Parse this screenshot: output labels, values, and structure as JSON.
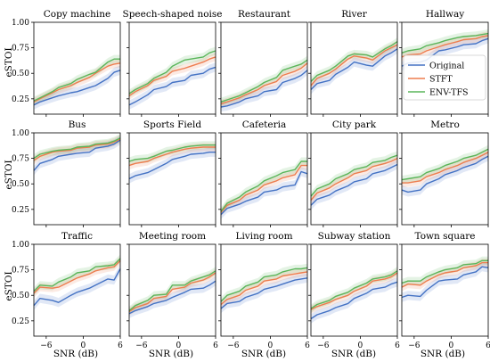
{
  "chart_data": {
    "type": "line",
    "layout": "3x5 small multiples, shared axes",
    "xlabel": "SNR (dB)",
    "ylabel": "eSTOI",
    "x": [
      -8,
      -7,
      -5,
      -4,
      -2,
      -1,
      1,
      2,
      4,
      5,
      6
    ],
    "xticks": [
      -6,
      0,
      6
    ],
    "yticks": [
      0.25,
      0.5,
      0.75,
      1.0
    ],
    "xlim": [
      -8,
      6
    ],
    "ylim": [
      0.1,
      1.0
    ],
    "legend": {
      "placement": "inside Hallway panel, bottom-right",
      "entries": [
        "Original",
        "STFT",
        "ENV-TFS"
      ]
    },
    "series_colors": {
      "Original": "#4472c4",
      "STFT": "#ed7d4f",
      "ENV-TFS": "#5ab55a"
    },
    "panels": [
      {
        "title": "Copy machine",
        "series": [
          {
            "name": "Original",
            "values": [
              0.19,
              0.22,
              0.26,
              0.28,
              0.31,
              0.32,
              0.36,
              0.38,
              0.45,
              0.51,
              0.53
            ]
          },
          {
            "name": "STFT",
            "values": [
              0.22,
              0.25,
              0.31,
              0.34,
              0.38,
              0.41,
              0.46,
              0.5,
              0.57,
              0.59,
              0.6
            ]
          },
          {
            "name": "ENV-TFS",
            "values": [
              0.23,
              0.26,
              0.32,
              0.36,
              0.4,
              0.44,
              0.49,
              0.51,
              0.61,
              0.64,
              0.64
            ]
          }
        ]
      },
      {
        "title": "Speech-shaped noise",
        "series": [
          {
            "name": "Original",
            "values": [
              0.19,
              0.22,
              0.29,
              0.34,
              0.37,
              0.41,
              0.43,
              0.48,
              0.5,
              0.54,
              0.56
            ]
          },
          {
            "name": "STFT",
            "values": [
              0.28,
              0.32,
              0.38,
              0.43,
              0.47,
              0.52,
              0.55,
              0.57,
              0.61,
              0.64,
              0.66
            ]
          },
          {
            "name": "ENV-TFS",
            "values": [
              0.3,
              0.34,
              0.4,
              0.45,
              0.51,
              0.57,
              0.63,
              0.64,
              0.66,
              0.7,
              0.72
            ]
          }
        ]
      },
      {
        "title": "Restaurant",
        "series": [
          {
            "name": "Original",
            "values": [
              0.17,
              0.18,
              0.22,
              0.25,
              0.28,
              0.32,
              0.34,
              0.41,
              0.45,
              0.48,
              0.53
            ]
          },
          {
            "name": "STFT",
            "values": [
              0.2,
              0.22,
              0.26,
              0.29,
              0.34,
              0.38,
              0.42,
              0.48,
              0.52,
              0.55,
              0.6
            ]
          },
          {
            "name": "ENV-TFS",
            "values": [
              0.22,
              0.24,
              0.28,
              0.31,
              0.37,
              0.41,
              0.46,
              0.53,
              0.57,
              0.59,
              0.63
            ]
          }
        ]
      },
      {
        "title": "River",
        "series": [
          {
            "name": "Original",
            "values": [
              0.34,
              0.4,
              0.43,
              0.49,
              0.56,
              0.61,
              0.58,
              0.57,
              0.67,
              0.7,
              0.74
            ]
          },
          {
            "name": "STFT",
            "values": [
              0.38,
              0.45,
              0.5,
              0.54,
              0.64,
              0.67,
              0.65,
              0.63,
              0.72,
              0.75,
              0.78
            ]
          },
          {
            "name": "ENV-TFS",
            "values": [
              0.42,
              0.48,
              0.53,
              0.57,
              0.67,
              0.69,
              0.68,
              0.66,
              0.74,
              0.77,
              0.81
            ]
          }
        ]
      },
      {
        "title": "Hallway",
        "series": [
          {
            "name": "Original",
            "values": [
              0.57,
              0.6,
              0.61,
              0.63,
              0.72,
              0.73,
              0.76,
              0.78,
              0.79,
              0.82,
              0.84
            ]
          },
          {
            "name": "STFT",
            "values": [
              0.66,
              0.68,
              0.69,
              0.72,
              0.76,
              0.78,
              0.81,
              0.83,
              0.84,
              0.86,
              0.87
            ]
          },
          {
            "name": "ENV-TFS",
            "values": [
              0.7,
              0.72,
              0.74,
              0.77,
              0.8,
              0.82,
              0.85,
              0.86,
              0.87,
              0.88,
              0.89
            ]
          }
        ]
      },
      {
        "title": "Bus",
        "series": [
          {
            "name": "Original",
            "values": [
              0.63,
              0.7,
              0.74,
              0.77,
              0.79,
              0.8,
              0.81,
              0.85,
              0.87,
              0.89,
              0.93
            ]
          },
          {
            "name": "STFT",
            "values": [
              0.73,
              0.77,
              0.81,
              0.82,
              0.83,
              0.85,
              0.86,
              0.88,
              0.89,
              0.91,
              0.94
            ]
          },
          {
            "name": "ENV-TFS",
            "values": [
              0.75,
              0.79,
              0.82,
              0.83,
              0.84,
              0.86,
              0.87,
              0.89,
              0.9,
              0.92,
              0.95
            ]
          }
        ]
      },
      {
        "title": "Sports Field",
        "series": [
          {
            "name": "Original",
            "values": [
              0.55,
              0.58,
              0.61,
              0.64,
              0.7,
              0.74,
              0.77,
              0.79,
              0.8,
              0.81,
              0.81
            ]
          },
          {
            "name": "STFT",
            "values": [
              0.68,
              0.7,
              0.72,
              0.75,
              0.79,
              0.81,
              0.84,
              0.85,
              0.86,
              0.86,
              0.86
            ]
          },
          {
            "name": "ENV-TFS",
            "values": [
              0.72,
              0.74,
              0.75,
              0.77,
              0.82,
              0.83,
              0.86,
              0.87,
              0.88,
              0.88,
              0.88
            ]
          }
        ]
      },
      {
        "title": "Cafeteria",
        "series": [
          {
            "name": "Original",
            "values": [
              0.2,
              0.26,
              0.3,
              0.33,
              0.37,
              0.42,
              0.44,
              0.47,
              0.49,
              0.62,
              0.6
            ]
          },
          {
            "name": "STFT",
            "values": [
              0.22,
              0.29,
              0.34,
              0.39,
              0.44,
              0.49,
              0.53,
              0.56,
              0.59,
              0.68,
              0.68
            ]
          },
          {
            "name": "ENV-TFS",
            "values": [
              0.23,
              0.31,
              0.37,
              0.42,
              0.48,
              0.53,
              0.58,
              0.61,
              0.64,
              0.72,
              0.72
            ]
          }
        ]
      },
      {
        "title": "City park",
        "series": [
          {
            "name": "Original",
            "values": [
              0.29,
              0.35,
              0.39,
              0.43,
              0.48,
              0.52,
              0.55,
              0.6,
              0.63,
              0.66,
              0.69
            ]
          },
          {
            "name": "STFT",
            "values": [
              0.34,
              0.41,
              0.46,
              0.5,
              0.56,
              0.6,
              0.63,
              0.67,
              0.7,
              0.72,
              0.75
            ]
          },
          {
            "name": "ENV-TFS",
            "values": [
              0.38,
              0.45,
              0.5,
              0.55,
              0.6,
              0.64,
              0.67,
              0.71,
              0.73,
              0.76,
              0.78
            ]
          }
        ]
      },
      {
        "title": "Metro",
        "series": [
          {
            "name": "Original",
            "values": [
              0.44,
              0.42,
              0.44,
              0.5,
              0.55,
              0.59,
              0.63,
              0.66,
              0.7,
              0.74,
              0.77
            ]
          },
          {
            "name": "STFT",
            "values": [
              0.51,
              0.51,
              0.53,
              0.57,
              0.61,
              0.64,
              0.68,
              0.71,
              0.75,
              0.78,
              0.81
            ]
          },
          {
            "name": "ENV-TFS",
            "values": [
              0.54,
              0.55,
              0.57,
              0.61,
              0.65,
              0.68,
              0.72,
              0.75,
              0.78,
              0.81,
              0.84
            ]
          }
        ]
      },
      {
        "title": "Traffic",
        "series": [
          {
            "name": "Original",
            "values": [
              0.4,
              0.47,
              0.45,
              0.43,
              0.5,
              0.53,
              0.57,
              0.6,
              0.66,
              0.65,
              0.76
            ]
          },
          {
            "name": "STFT",
            "values": [
              0.52,
              0.58,
              0.57,
              0.58,
              0.64,
              0.67,
              0.71,
              0.74,
              0.77,
              0.78,
              0.84
            ]
          },
          {
            "name": "ENV-TFS",
            "values": [
              0.54,
              0.6,
              0.59,
              0.63,
              0.68,
              0.72,
              0.74,
              0.78,
              0.79,
              0.8,
              0.86
            ]
          }
        ]
      },
      {
        "title": "Meeting room",
        "series": [
          {
            "name": "Original",
            "values": [
              0.32,
              0.35,
              0.39,
              0.42,
              0.45,
              0.48,
              0.53,
              0.56,
              0.57,
              0.6,
              0.64
            ]
          },
          {
            "name": "STFT",
            "values": [
              0.34,
              0.38,
              0.42,
              0.47,
              0.49,
              0.56,
              0.58,
              0.62,
              0.65,
              0.68,
              0.72
            ]
          },
          {
            "name": "ENV-TFS",
            "values": [
              0.35,
              0.4,
              0.45,
              0.5,
              0.51,
              0.6,
              0.6,
              0.64,
              0.68,
              0.7,
              0.74
            ]
          }
        ]
      },
      {
        "title": "Living room",
        "series": [
          {
            "name": "Original",
            "values": [
              0.37,
              0.42,
              0.44,
              0.48,
              0.52,
              0.56,
              0.59,
              0.61,
              0.65,
              0.66,
              0.67
            ]
          },
          {
            "name": "STFT",
            "values": [
              0.41,
              0.46,
              0.5,
              0.55,
              0.59,
              0.64,
              0.66,
              0.69,
              0.71,
              0.72,
              0.73
            ]
          },
          {
            "name": "ENV-TFS",
            "values": [
              0.44,
              0.5,
              0.54,
              0.59,
              0.63,
              0.68,
              0.7,
              0.73,
              0.76,
              0.76,
              0.77
            ]
          }
        ]
      },
      {
        "title": "Subway station",
        "series": [
          {
            "name": "Original",
            "values": [
              0.27,
              0.31,
              0.35,
              0.38,
              0.42,
              0.47,
              0.52,
              0.56,
              0.58,
              0.61,
              0.63
            ]
          },
          {
            "name": "STFT",
            "values": [
              0.36,
              0.39,
              0.43,
              0.46,
              0.5,
              0.54,
              0.59,
              0.64,
              0.66,
              0.68,
              0.72
            ]
          },
          {
            "name": "ENV-TFS",
            "values": [
              0.37,
              0.41,
              0.45,
              0.49,
              0.53,
              0.57,
              0.62,
              0.66,
              0.68,
              0.7,
              0.74
            ]
          }
        ]
      },
      {
        "title": "Town square",
        "series": [
          {
            "name": "Original",
            "values": [
              0.48,
              0.5,
              0.49,
              0.55,
              0.64,
              0.65,
              0.66,
              0.7,
              0.73,
              0.78,
              0.77
            ]
          },
          {
            "name": "STFT",
            "values": [
              0.58,
              0.61,
              0.6,
              0.64,
              0.7,
              0.72,
              0.74,
              0.77,
              0.79,
              0.82,
              0.82
            ]
          },
          {
            "name": "ENV-TFS",
            "values": [
              0.62,
              0.64,
              0.64,
              0.68,
              0.73,
              0.75,
              0.77,
              0.8,
              0.81,
              0.84,
              0.84
            ]
          }
        ]
      }
    ]
  }
}
